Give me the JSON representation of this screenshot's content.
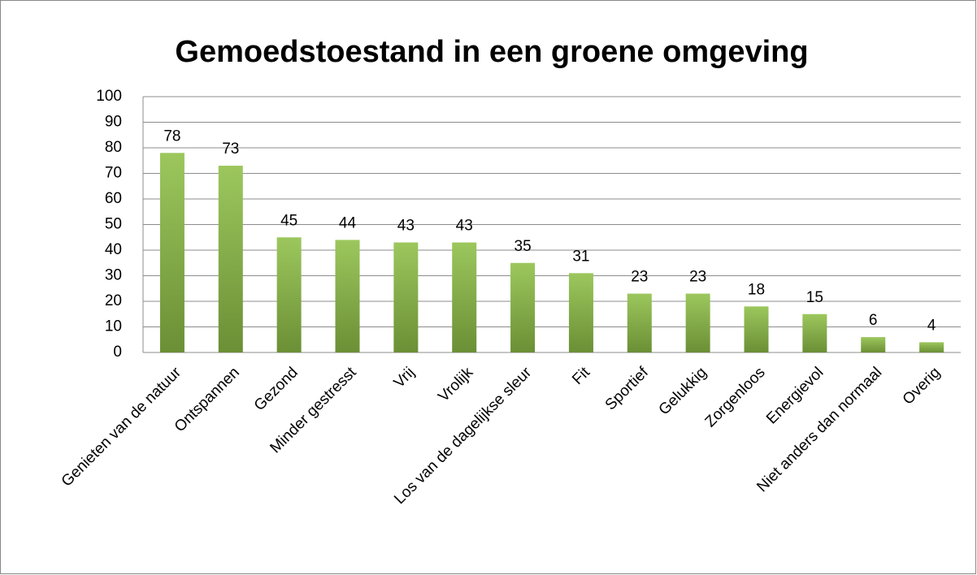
{
  "chart_data": {
    "type": "bar",
    "title": "Gemoedstoestand in een groene omgeving",
    "categories": [
      "Genieten van de natuur",
      "Ontspannen",
      "Gezond",
      "Minder gestresst",
      "Vrij",
      "Vrolijk",
      "Los van de dagelijkse sleur",
      "Fit",
      "Sportief",
      "Gelukkig",
      "Zorgenloos",
      "Energievol",
      "Niet anders dan normaal",
      "Overig"
    ],
    "values": [
      78,
      73,
      45,
      44,
      43,
      43,
      35,
      31,
      23,
      23,
      18,
      15,
      6,
      4
    ],
    "color": "#8fbf47",
    "ylim": [
      0,
      100
    ],
    "yticks": [
      0,
      10,
      20,
      30,
      40,
      50,
      60,
      70,
      80,
      90,
      100
    ],
    "grid": true
  }
}
